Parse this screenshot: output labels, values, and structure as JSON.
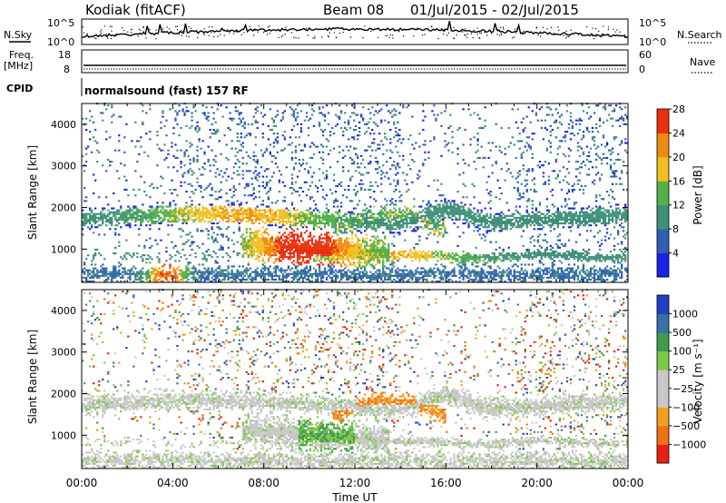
{
  "header": {
    "station": "Kodiak (fitACF)",
    "beam": "Beam 08",
    "date_range": "01/Jul/2015 - 02/Jul/2015"
  },
  "summary_panels": {
    "noise": {
      "left_label": "N.Sky",
      "right_label": "N.Search",
      "left_ticks": [
        "10^5",
        "10^0"
      ],
      "right_ticks": [
        "10^5",
        "10^0"
      ]
    },
    "freq": {
      "left_label_1": "Freq.",
      "left_label_2": "[MHz]",
      "left_ticks": [
        "18",
        "8"
      ],
      "right_label": "Nave",
      "right_ticks": [
        "60",
        "0"
      ]
    },
    "cpid": {
      "label": "CPID",
      "text": "normalsound (fast) 157 RF"
    }
  },
  "chart_data": [
    {
      "type": "heatmap",
      "title": "",
      "xlabel": "Time UT",
      "ylabel": "Slant Range [km]",
      "xlim": [
        0,
        24
      ],
      "ylim": [
        200,
        4500
      ],
      "x_ticks": [
        "00:00",
        "04:00",
        "08:00",
        "12:00",
        "16:00",
        "20:00",
        "00:00"
      ],
      "y_ticks": [
        "1000",
        "2000",
        "3000",
        "4000"
      ],
      "y_tick_values": [
        1000,
        2000,
        3000,
        4000
      ],
      "colorbar": {
        "label": "Power [dB]",
        "ticks": [
          "4",
          "8",
          "12",
          "16",
          "20",
          "24",
          "28"
        ],
        "colors": [
          "#1b22e8",
          "#2f5fb0",
          "#3f8f7a",
          "#55b04a",
          "#f0c020",
          "#f08a10",
          "#e83010"
        ]
      },
      "features": [
        {
          "name": "backscatter band",
          "t_start": 0.0,
          "t_end": 24.0,
          "range_km": [
            1500,
            2000
          ]
        },
        {
          "name": "strong echoes",
          "t_start": 7.5,
          "t_end": 12.0,
          "range_km": [
            700,
            1400
          ]
        },
        {
          "name": "near-range echoes",
          "t_start": 3.0,
          "t_end": 4.5,
          "range_km": [
            200,
            600
          ]
        }
      ]
    },
    {
      "type": "heatmap",
      "title": "",
      "xlabel": "Time UT",
      "ylabel": "Slant Range [km]",
      "xlim": [
        0,
        24
      ],
      "ylim": [
        200,
        4500
      ],
      "x_ticks": [
        "00:00",
        "04:00",
        "08:00",
        "12:00",
        "16:00",
        "20:00",
        "00:00"
      ],
      "y_ticks": [
        "1000",
        "2000",
        "3000",
        "4000"
      ],
      "y_tick_values": [
        1000,
        2000,
        3000,
        4000
      ],
      "colorbar": {
        "label": "Velocity [m s⁻¹]",
        "ticks": [
          "1000",
          "500",
          "100",
          "25",
          "−25",
          "−100",
          "−500",
          "−1000"
        ],
        "colors": [
          "#2040c0",
          "#3a6fa8",
          "#3f9a50",
          "#7fc84a",
          "#c8c8c8",
          "#c8c8c8",
          "#f0a020",
          "#f07018",
          "#e82010"
        ]
      }
    }
  ]
}
